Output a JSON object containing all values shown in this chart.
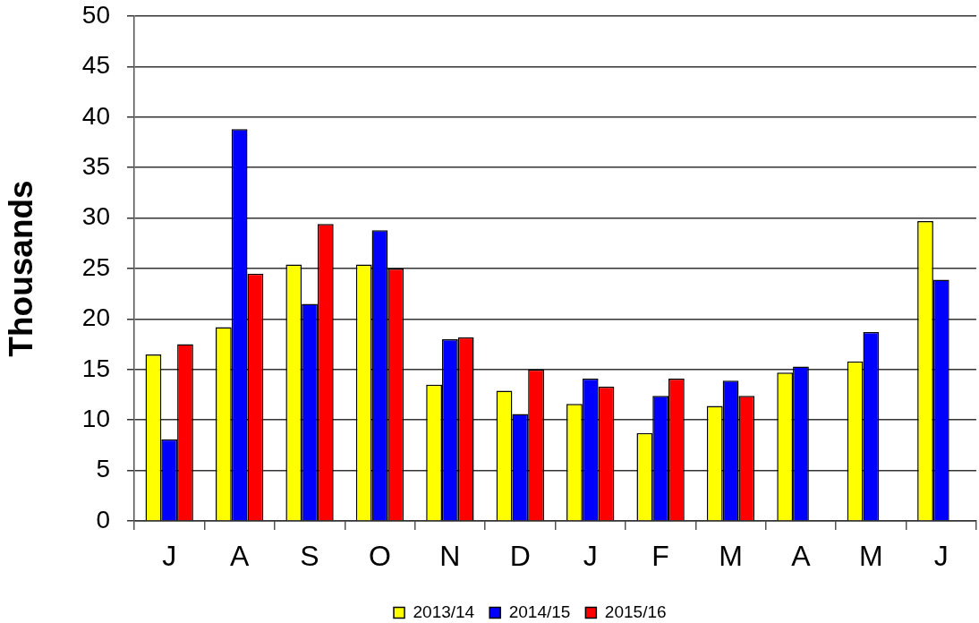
{
  "chart_data": {
    "type": "bar",
    "ylabel": "Thousands",
    "categories": [
      "J",
      "A",
      "S",
      "O",
      "N",
      "D",
      "J",
      "F",
      "M",
      "A",
      "M",
      "J"
    ],
    "series": [
      {
        "name": "2013/14",
        "color": "#ffff00",
        "values": [
          16.5,
          19.2,
          25.4,
          25.4,
          13.5,
          12.9,
          11.6,
          8.7,
          11.4,
          14.7,
          15.8,
          29.7
        ]
      },
      {
        "name": "2014/15",
        "color": "#0000ff",
        "values": [
          8.1,
          38.8,
          21.5,
          28.8,
          18.0,
          10.6,
          14.1,
          12.4,
          13.9,
          15.3,
          18.7,
          23.9
        ]
      },
      {
        "name": "2015/16",
        "color": "#ff0000",
        "values": [
          17.5,
          24.5,
          29.4,
          25.0,
          18.2,
          15.0,
          13.3,
          14.1,
          12.4,
          null,
          null,
          null
        ]
      }
    ],
    "ylim": [
      0,
      50
    ],
    "yticks": [
      0,
      5,
      10,
      15,
      20,
      25,
      30,
      35,
      40,
      45,
      50
    ],
    "grid": "y",
    "legend": "bottom"
  }
}
